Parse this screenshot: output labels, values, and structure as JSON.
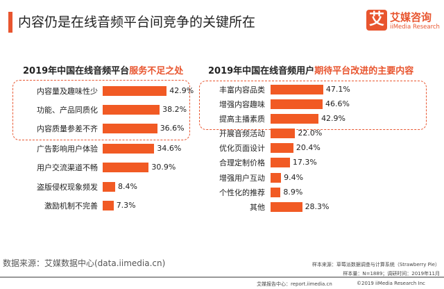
{
  "header": {
    "title": "内容仍是在线音频平台间竞争的关键所在",
    "logo_cn": "艾媒咨询",
    "logo_en": "iiMedia Research",
    "logo_mark": "艾"
  },
  "chart_data": [
    {
      "type": "bar",
      "orientation": "horizontal",
      "title": "2019年中国在线音频平台",
      "title_highlight": "服务不足之处",
      "categories": [
        "内容量及趣味性少",
        "功能、产品同质化",
        "内容质量参差不齐",
        "广告影响用户体验",
        "用户交流渠道不畅",
        "盗版侵权现象频发",
        "激励机制不完善"
      ],
      "values": [
        42.9,
        38.2,
        36.6,
        34.6,
        30.9,
        8.4,
        7.3
      ],
      "labels": [
        "42.9%",
        "38.2%",
        "36.6%",
        "34.6%",
        "30.9%",
        "8.4%",
        "7.3%"
      ],
      "highlighted_top": 3,
      "color": "#f15a24"
    },
    {
      "type": "bar",
      "orientation": "horizontal",
      "title": "2019年中国在线音频用户",
      "title_highlight": "期待平台改进的主要内容",
      "categories": [
        "丰富内容品类",
        "增强内容趣味",
        "提高主播素质",
        "开展音频活动",
        "优化页面设计",
        "合理定制价格",
        "增强用户互动",
        "个性化的推荐",
        "其他"
      ],
      "values": [
        47.1,
        46.6,
        42.9,
        22.0,
        20.4,
        17.3,
        9.4,
        8.9,
        28.3
      ],
      "labels": [
        "47.1%",
        "46.6%",
        "42.9%",
        "22.0%",
        "20.4%",
        "17.3%",
        "9.4%",
        "8.9%",
        "28.3%"
      ],
      "highlighted_top": 3,
      "color": "#f15a24"
    }
  ],
  "footer": {
    "source": "数据来源：艾媒数据中心(data.iimedia.cn)",
    "sample_source": "样本来源：草莓派数据调查与计算系统（Strawberry Pie）",
    "sample_info": "样本量：N=1889；调研时间：2019年11月",
    "report": "艾媒报告中心：report.iimedia.cn",
    "copyright": "©2019  iiMedia Research  Inc"
  }
}
